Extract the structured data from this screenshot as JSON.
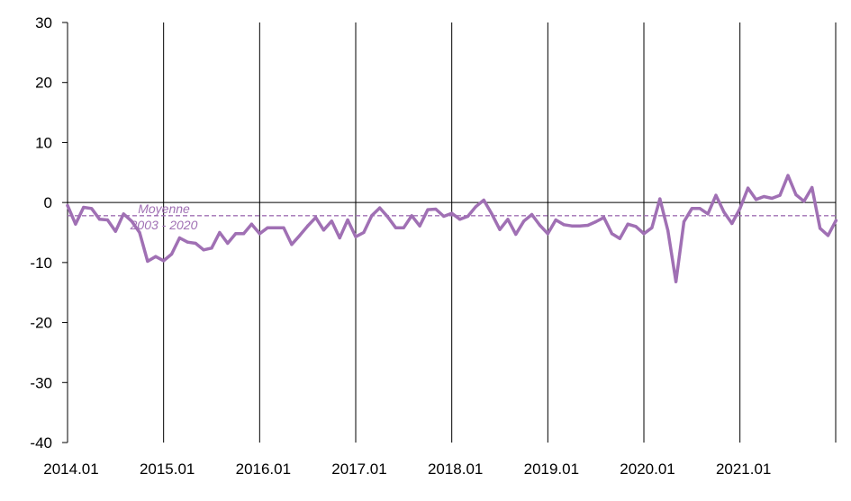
{
  "chart_data": {
    "type": "line",
    "title": "",
    "xlabel": "",
    "ylabel": "",
    "ylim": [
      -40,
      30
    ],
    "yticks": [
      30,
      20,
      10,
      0,
      -10,
      -20,
      -30,
      -40
    ],
    "year_ticks": [
      "2014.01",
      "2015.01",
      "2016.01",
      "2017.01",
      "2018.01",
      "2019.01",
      "2020.01",
      "2021.01"
    ],
    "grid": "vertical lines at each January",
    "legend": "none",
    "colors": {
      "series": "#a070b4",
      "axis": "#000000"
    },
    "average": {
      "value": -2.2,
      "label_line1": "Moyenne",
      "label_line2": "2003 - 2020"
    },
    "series": [
      {
        "values": [
          -0.5,
          -3.6,
          -0.8,
          -1.0,
          -2.8,
          -2.9,
          -4.8,
          -1.9,
          -3.1,
          -5.0,
          -9.8,
          -9.0,
          -9.7,
          -8.6,
          -5.9,
          -6.6,
          -6.8,
          -7.9,
          -7.6,
          -5.0,
          -6.8,
          -5.2,
          -5.2,
          -3.6,
          -5.2,
          -4.2,
          -4.2,
          -4.2,
          -7.0,
          -5.5,
          -3.9,
          -2.5,
          -4.6,
          -3.1,
          -5.9,
          -2.9,
          -5.7,
          -5.0,
          -2.2,
          -0.9,
          -2.4,
          -4.2,
          -4.2,
          -2.2,
          -3.9,
          -1.2,
          -1.1,
          -2.3,
          -1.8,
          -2.8,
          -2.3,
          -0.7,
          0.4,
          -1.9,
          -4.5,
          -2.8,
          -5.3,
          -3.1,
          -2.0,
          -3.8,
          -5.2,
          -2.9,
          -3.7,
          -3.9,
          -3.9,
          -3.8,
          -3.2,
          -2.5,
          -5.2,
          -6.0,
          -3.6,
          -4.0,
          -5.2,
          -4.2,
          0.6,
          -4.7,
          -13.2,
          -3.2,
          -1.0,
          -1.0,
          -1.9,
          1.2,
          -1.6,
          -3.5,
          -1.0,
          2.4,
          0.5,
          1.0,
          0.7,
          1.2,
          4.5,
          1.3,
          0.2,
          2.5,
          -4.3,
          -5.5,
          -3.0
        ]
      }
    ]
  }
}
